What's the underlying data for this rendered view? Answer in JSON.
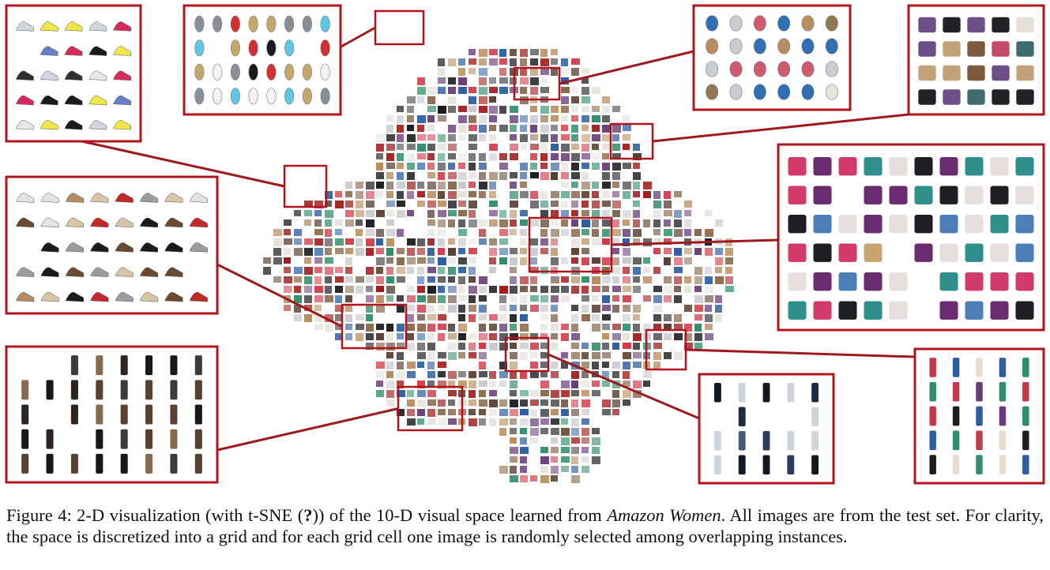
{
  "caption": {
    "label": "Figure 4:",
    "text_before": "2-D visualization (with t-SNE (",
    "citation_mark": "?",
    "text_middle": ")) of the 10-D visual space learned from ",
    "dataset": "Amazon Women",
    "text_after": ". All images are from the test set. For clarity, the space is discretized into a grid and for each grid cell one image is randomly selected among overlapping instances."
  },
  "figure": {
    "frame_color": "#b0141c",
    "connector_color": "#9e1a1e",
    "insets": [
      {
        "id": "sneakers",
        "palette": [
          "#e8e8ea",
          "#d6285a",
          "#1b1b1f",
          "#6a7dc8",
          "#cfd6dd",
          "#f0e64a",
          "#2f2f36"
        ]
      },
      {
        "id": "watches",
        "palette": [
          "#1a1a1e",
          "#f3f3f3",
          "#c4a86a",
          "#5fc6e6",
          "#d43030",
          "#8a8f95"
        ]
      },
      {
        "id": "jewelry",
        "palette": [
          "#c9ccd2",
          "#b98d5d",
          "#e8e3da",
          "#2f6fb3",
          "#d05a6e",
          "#8f7a55"
        ]
      },
      {
        "id": "handbags",
        "palette": [
          "#222226",
          "#7d5a3d",
          "#6b4f86",
          "#c2a27b",
          "#e7e2d9",
          "#c44a6a",
          "#3f6a6e"
        ]
      },
      {
        "id": "tops-dresses",
        "palette": [
          "#1f1f23",
          "#d23a6a",
          "#4c7fb8",
          "#6a2b6f",
          "#e7dede",
          "#2f8f8a",
          "#c9a46e"
        ]
      },
      {
        "id": "heels",
        "palette": [
          "#1b1b1f",
          "#b48c64",
          "#d8c4a8",
          "#6b4a32",
          "#e6e2e0",
          "#c22a2a",
          "#9c9c9c"
        ]
      },
      {
        "id": "boots",
        "palette": [
          "#18181b",
          "#5a4030",
          "#2b2420",
          "#8a6a4c",
          "#3c3c3f"
        ]
      },
      {
        "id": "jeans",
        "palette": [
          "#1f2a44",
          "#2d3b5c",
          "#14181f",
          "#47597e",
          "#cfd3da"
        ]
      },
      {
        "id": "dresses-models",
        "palette": [
          "#1e1e22",
          "#2f8f6a",
          "#2e5ea0",
          "#c23a4a",
          "#e8dcd0",
          "#6a3d7a"
        ]
      }
    ]
  }
}
